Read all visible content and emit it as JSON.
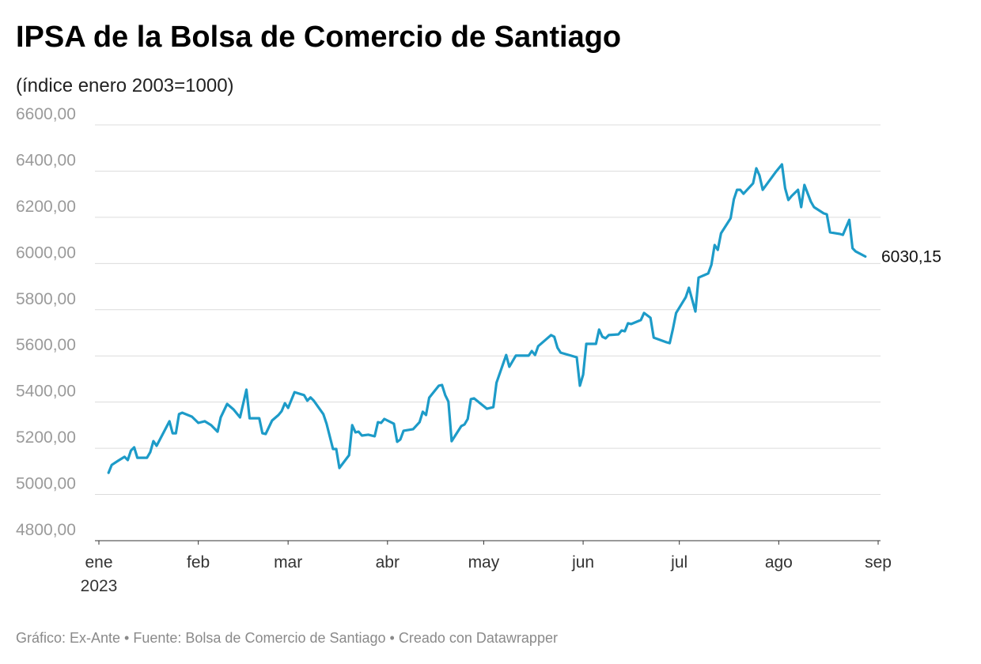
{
  "chart_data": {
    "type": "line",
    "title": "IPSA de la Bolsa de Comercio de Santiago",
    "subtitle": "(índice enero 2003=1000)",
    "footer": "Gráfico: Ex-Ante • Fuente: Bolsa de Comercio de Santiago • Creado con Datawrapper",
    "color": "#1d9bc8",
    "x": [
      3,
      4,
      6,
      8,
      9,
      10,
      11,
      12,
      15,
      16,
      17,
      18,
      22,
      23,
      24,
      25,
      26,
      29,
      31,
      33,
      35,
      37,
      38,
      40,
      42,
      44,
      46,
      47,
      50,
      51,
      52,
      54,
      56,
      57,
      58,
      59,
      61,
      64,
      65,
      66,
      67,
      70,
      71,
      73,
      74,
      75,
      78,
      79,
      80,
      81,
      82,
      84,
      86,
      87,
      88,
      89,
      92,
      93,
      94,
      95,
      98,
      100,
      101,
      102,
      103,
      106,
      107,
      108,
      109,
      110,
      113,
      114,
      115,
      116,
      117,
      121,
      123,
      124,
      127,
      128,
      130,
      134,
      135,
      136,
      137,
      141,
      142,
      143,
      144,
      149,
      150,
      151,
      152,
      155,
      156,
      157,
      158,
      159,
      162,
      163,
      164,
      165,
      166,
      169,
      170,
      172,
      173,
      177,
      178,
      179,
      180,
      183,
      184,
      186,
      187,
      190,
      191,
      192,
      193,
      194,
      197,
      198,
      199,
      200,
      201,
      204,
      205,
      206,
      207,
      211,
      213,
      214,
      215,
      216,
      218,
      219,
      220,
      222,
      223,
      226,
      227,
      228,
      231,
      232,
      234,
      235,
      236,
      239
    ],
    "values": [
      5094,
      5128,
      5146,
      5163,
      5149,
      5190,
      5204,
      5159,
      5159,
      5183,
      5231,
      5211,
      5317,
      5265,
      5265,
      5348,
      5354,
      5337,
      5310,
      5317,
      5300,
      5272,
      5334,
      5392,
      5368,
      5334,
      5454,
      5330,
      5330,
      5265,
      5262,
      5320,
      5344,
      5361,
      5395,
      5375,
      5443,
      5430,
      5406,
      5420,
      5406,
      5348,
      5306,
      5197,
      5197,
      5115,
      5170,
      5300,
      5269,
      5272,
      5255,
      5259,
      5252,
      5313,
      5310,
      5327,
      5306,
      5228,
      5238,
      5276,
      5283,
      5313,
      5358,
      5344,
      5419,
      5471,
      5474,
      5430,
      5402,
      5231,
      5296,
      5303,
      5327,
      5413,
      5416,
      5371,
      5378,
      5484,
      5604,
      5553,
      5601,
      5601,
      5621,
      5604,
      5642,
      5690,
      5683,
      5635,
      5614,
      5594,
      5471,
      5519,
      5652,
      5652,
      5714,
      5683,
      5676,
      5690,
      5693,
      5710,
      5707,
      5741,
      5738,
      5755,
      5786,
      5765,
      5679,
      5659,
      5655,
      5717,
      5786,
      5854,
      5895,
      5792,
      5939,
      5957,
      5994,
      6080,
      6059,
      6131,
      6196,
      6278,
      6319,
      6319,
      6302,
      6347,
      6412,
      6381,
      6319,
      6395,
      6429,
      6326,
      6275,
      6292,
      6319,
      6244,
      6340,
      6268,
      6244,
      6217,
      6213,
      6135,
      6128,
      6124,
      6189,
      6066,
      6052,
      6030.15
    ],
    "end_label": "6030,15",
    "xlim": [
      0,
      243
    ],
    "xticks": [
      {
        "value": 0,
        "label": "ene"
      },
      {
        "value": 31,
        "label": "feb"
      },
      {
        "value": 59,
        "label": "mar"
      },
      {
        "value": 90,
        "label": "abr"
      },
      {
        "value": 120,
        "label": "may"
      },
      {
        "value": 151,
        "label": "jun"
      },
      {
        "value": 181,
        "label": "jul"
      },
      {
        "value": 212,
        "label": "ago"
      },
      {
        "value": 243,
        "label": "sep"
      }
    ],
    "x_sublabel": "2023",
    "ylim": [
      4800,
      6600
    ],
    "yticks": [
      {
        "value": 4800,
        "label": "4800,00"
      },
      {
        "value": 5000,
        "label": "5000,00"
      },
      {
        "value": 5200,
        "label": "5200,00"
      },
      {
        "value": 5400,
        "label": "5400,00"
      },
      {
        "value": 5600,
        "label": "5600,00"
      },
      {
        "value": 5800,
        "label": "5800,00"
      },
      {
        "value": 6000,
        "label": "6000,00"
      },
      {
        "value": 6200,
        "label": "6200,00"
      },
      {
        "value": 6400,
        "label": "6400,00"
      },
      {
        "value": 6600,
        "label": "6600,00"
      }
    ],
    "grid": true
  }
}
